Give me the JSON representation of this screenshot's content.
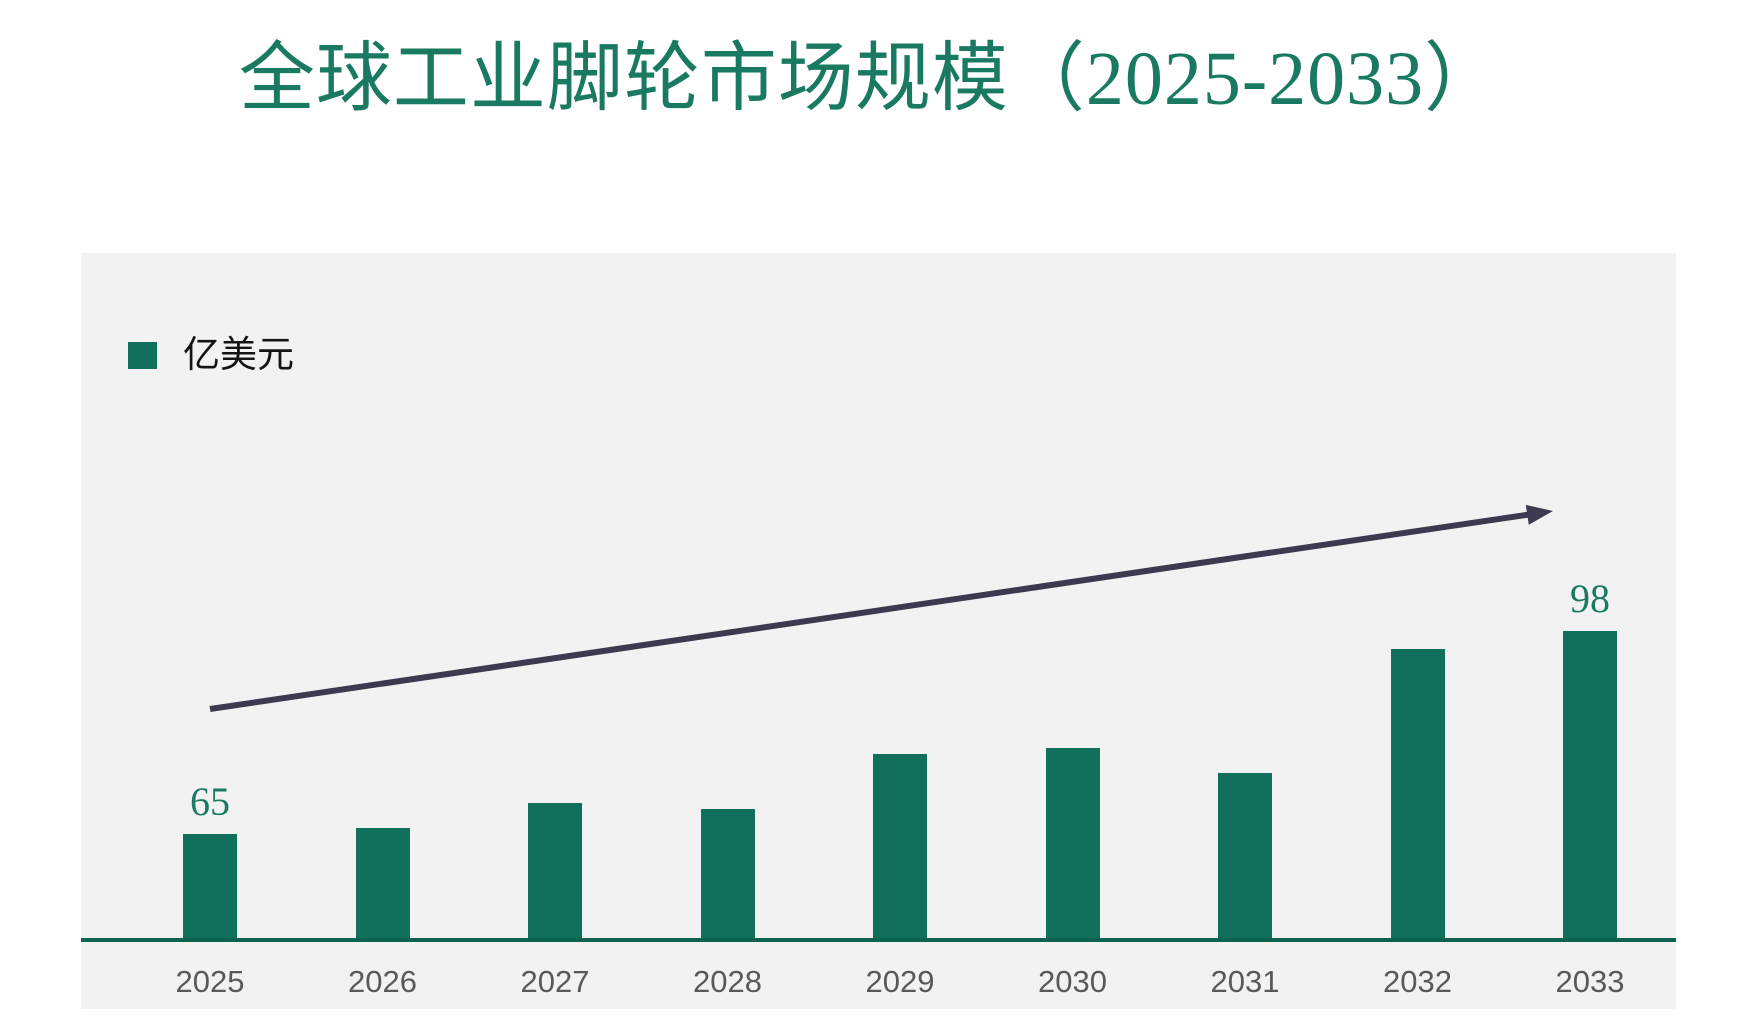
{
  "title": "全球工业脚轮市场规模（2025-2033）",
  "legend": {
    "label": "亿美元"
  },
  "colors": {
    "bar": "#11705c",
    "title_text": "#197a61",
    "data_label_text": "#197a61",
    "axis_line": "#0c6350",
    "x_tick_text": "#595959",
    "arrow": "#3d3950",
    "panel_background": "#f2f2f2",
    "page_background": "#ffffff"
  },
  "chart_data": {
    "type": "bar",
    "title": "全球工业脚轮市场规模（2025-2033）",
    "categories": [
      "2025",
      "2026",
      "2027",
      "2028",
      "2029",
      "2030",
      "2031",
      "2032",
      "2033"
    ],
    "values": [
      65,
      66,
      70,
      69,
      78,
      79,
      75,
      95,
      98
    ],
    "data_labels": [
      "65",
      "",
      "",
      "",
      "",
      "",
      "",
      "",
      "98"
    ],
    "unit_label": "亿美元",
    "xlabel": "",
    "ylabel": "亿美元",
    "ylim": [
      48,
      105
    ],
    "grid": false,
    "y_axis_ticks_visible": false,
    "legend_position": "top-left",
    "legend_entries": [
      "亿美元"
    ],
    "annotations": [
      "upward-trend-arrow"
    ]
  }
}
